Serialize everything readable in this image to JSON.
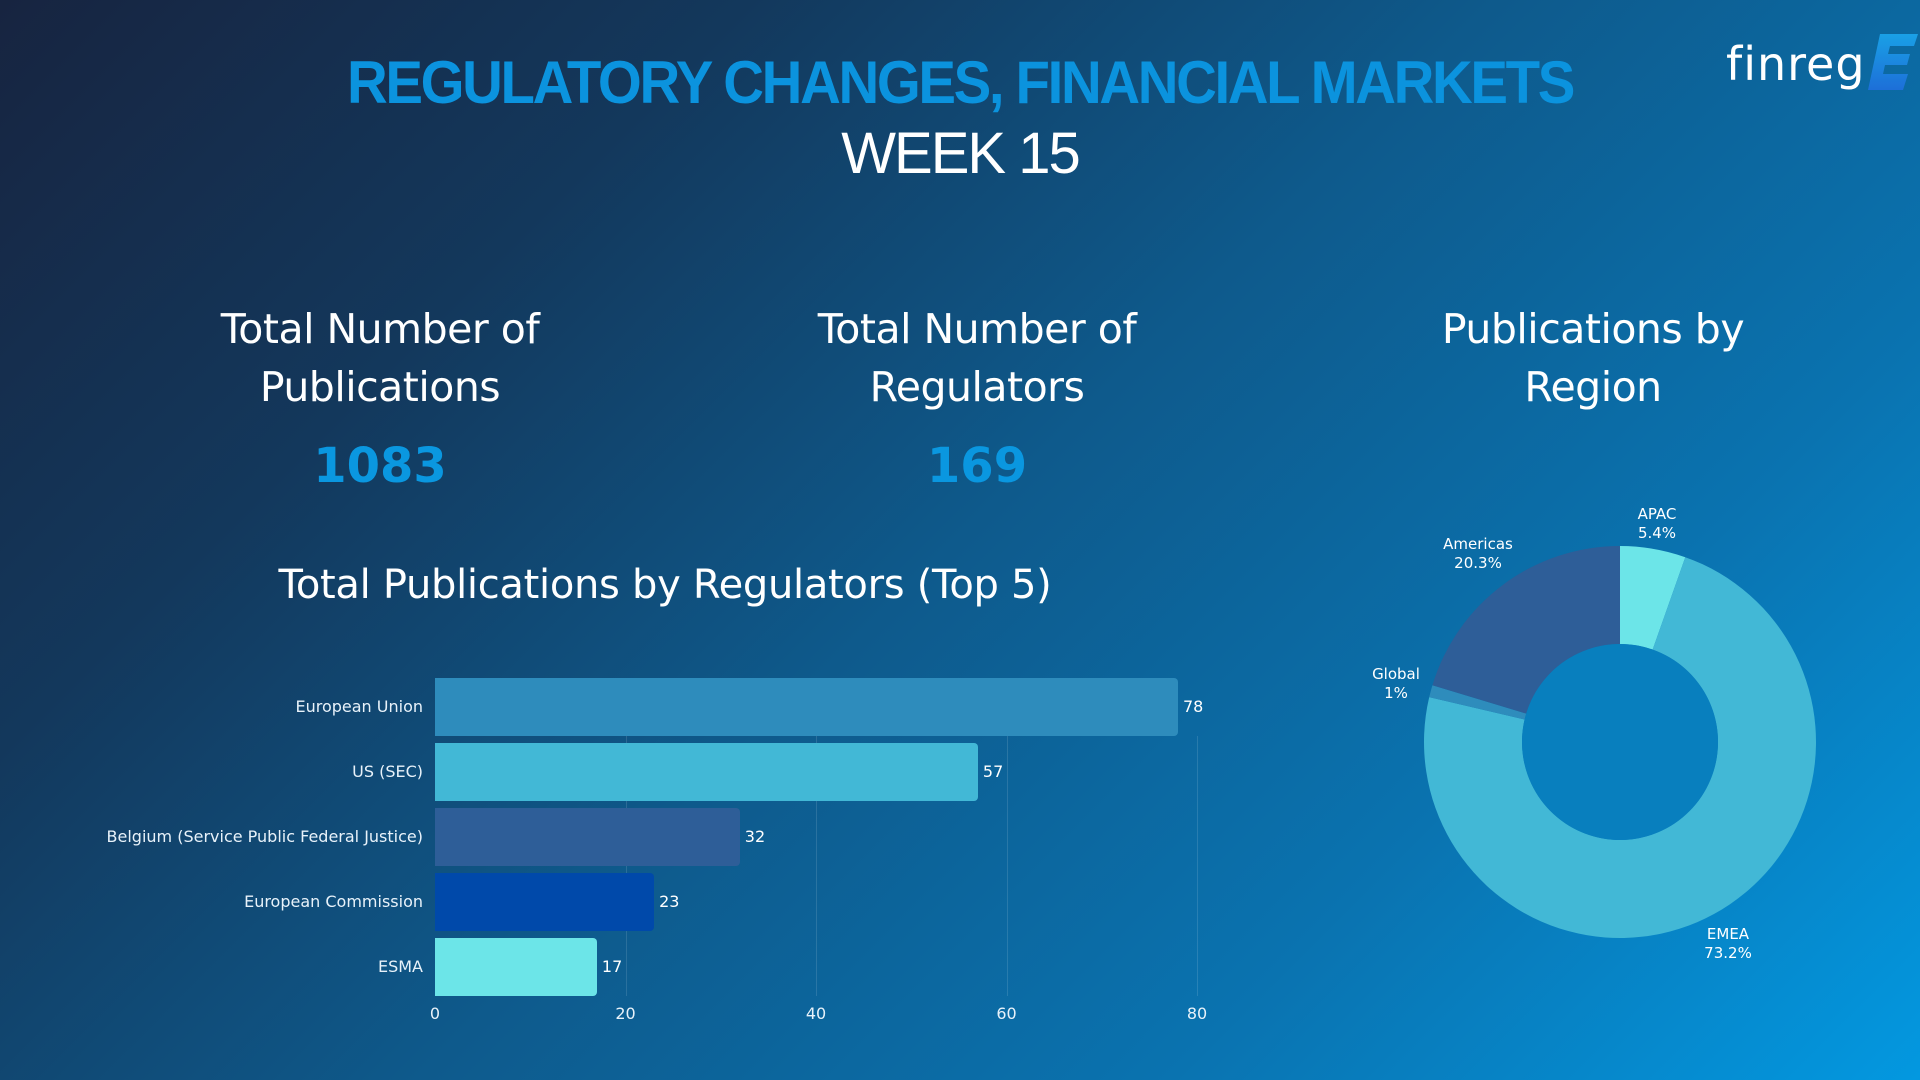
{
  "header": {
    "title": "REGULATORY CHANGES, FINANCIAL MARKETS",
    "subtitle": "WEEK 15"
  },
  "logo": {
    "text": "finreg",
    "mark": "E",
    "icon": "finreg-e-logo-icon"
  },
  "kpis": [
    {
      "label_line1": "Total Number of",
      "label_line2": "Publications",
      "value": "1083"
    },
    {
      "label_line1": "Total Number of",
      "label_line2": "Regulators",
      "value": "169"
    }
  ],
  "region_section": {
    "title_line1": "Publications by",
    "title_line2": "Region"
  },
  "bar_section": {
    "title": "Total Publications by Regulators (Top 5)"
  },
  "colors": {
    "title_accent": "#0b93de",
    "kpi_value": "#0a97e0",
    "bar_eu": "#2e8cbc",
    "bar_sec": "#42b8d6",
    "bar_belgium": "#2e5e98",
    "bar_ec": "#0049aa",
    "bar_esma": "#6ce5e8",
    "donut_apac": "#6ce5e8",
    "donut_emea": "#42b8d6",
    "donut_global": "#2e8cbc",
    "donut_americas": "#2e5e98",
    "donut_hole": "#087fbe"
  },
  "chart_data": [
    {
      "type": "bar",
      "orientation": "horizontal",
      "title": "Total Publications by Regulators (Top 5)",
      "categories": [
        "European Union",
        "US (SEC)",
        "Belgium (Service Public Federal Justice)",
        "European Commission",
        "ESMA"
      ],
      "values": [
        78,
        57,
        32,
        23,
        17
      ],
      "value_labels": [
        "78",
        "57",
        "32",
        "23",
        "17"
      ],
      "colors": [
        "#2e8cbc",
        "#42b8d6",
        "#2e5e98",
        "#0049aa",
        "#6ce5e8"
      ],
      "xlabel": "",
      "ylabel": "",
      "xlim": [
        0,
        80
      ],
      "x_ticks": [
        "0",
        "20",
        "40",
        "60",
        "80"
      ],
      "grid": true,
      "legend": "none"
    },
    {
      "type": "pie",
      "donut": true,
      "title": "Publications by Region",
      "categories": [
        "APAC",
        "EMEA",
        "Global",
        "Americas"
      ],
      "values": [
        5.4,
        73.2,
        1.0,
        20.3
      ],
      "value_labels": [
        "5.4%",
        "73.2%",
        "1%",
        "20.3%"
      ],
      "colors": [
        "#6ce5e8",
        "#42b8d6",
        "#2e8cbc",
        "#2e5e98"
      ],
      "start_angle": "12 o'clock",
      "direction": "clockwise",
      "legend": "inline labels"
    }
  ]
}
